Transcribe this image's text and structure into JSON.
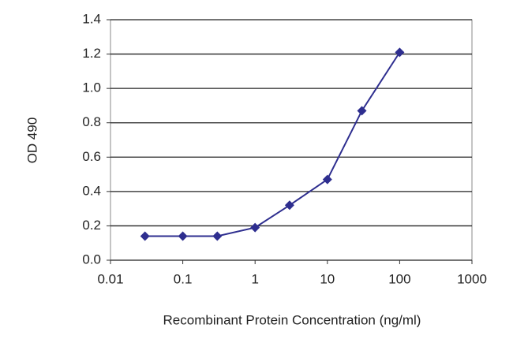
{
  "chart_data": {
    "type": "line",
    "x_label": "Recombinant Protein Concentration (ng/ml)",
    "y_label": "OD 490",
    "x": [
      0.03,
      0.1,
      0.3,
      1,
      3,
      10,
      30,
      100
    ],
    "values": [
      0.14,
      0.14,
      0.14,
      0.19,
      0.32,
      0.47,
      0.87,
      1.21
    ],
    "color": "#2e2e8f",
    "log_x": true,
    "xlim": [
      0.01,
      1000
    ],
    "xticks": [
      0.01,
      0.1,
      1,
      10,
      100,
      1000
    ],
    "ylim": [
      0,
      1.4
    ],
    "yticks": [
      {
        "value": 0,
        "label": "0.0"
      },
      {
        "value": 0.2,
        "label": "0.2"
      },
      {
        "value": 0.4,
        "label": "0.4"
      },
      {
        "value": 0.6,
        "label": "0.6"
      },
      {
        "value": 0.8,
        "label": "0.8"
      },
      {
        "value": 1.0,
        "label": "1.0"
      },
      {
        "value": 1.2,
        "label": "1.2"
      },
      {
        "value": 1.4,
        "label": "1.4"
      }
    ],
    "grid": true
  }
}
